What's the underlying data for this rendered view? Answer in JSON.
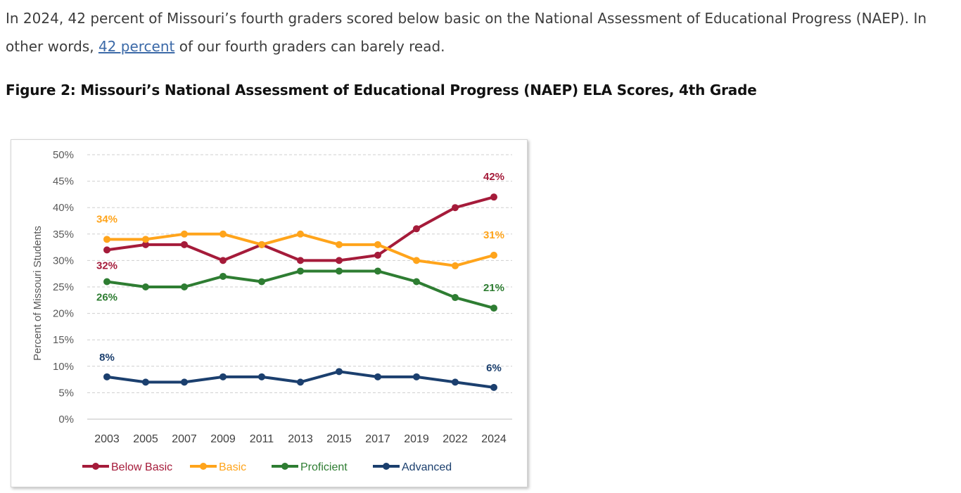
{
  "intro": {
    "text_before": "In 2024, 42 percent of Missouri’s fourth graders scored below basic on the National Assessment of Educational Progress (NAEP). In other words, ",
    "link_text": "42 percent",
    "text_after": " of our fourth graders can barely read."
  },
  "figure_title": "Figure 2: Missouri’s National Assessment of Educational Progress (NAEP) ELA Scores, 4th Grade",
  "chart_data": {
    "type": "line",
    "title": "",
    "xlabel": "",
    "ylabel": "Percent of Missouri Students",
    "x": [
      "2003",
      "2005",
      "2007",
      "2009",
      "2011",
      "2013",
      "2015",
      "2017",
      "2019",
      "2022",
      "2024"
    ],
    "ylim": [
      0,
      50
    ],
    "yticks": [
      "0%",
      "5%",
      "10%",
      "15%",
      "20%",
      "25%",
      "30%",
      "35%",
      "40%",
      "45%",
      "50%"
    ],
    "grid": true,
    "legend_position": "bottom",
    "series": [
      {
        "name": "Below Basic",
        "color": "#a51b3a",
        "values": [
          32,
          33,
          33,
          30,
          33,
          30,
          30,
          31,
          36,
          40,
          42
        ],
        "labels": {
          "first": "32%",
          "last": "42%"
        }
      },
      {
        "name": "Basic",
        "color": "#ffa41b",
        "values": [
          34,
          34,
          35,
          35,
          33,
          35,
          33,
          33,
          30,
          29,
          31
        ],
        "labels": {
          "first": "34%",
          "last": "31%"
        }
      },
      {
        "name": "Proficient",
        "color": "#2e7d32",
        "values": [
          26,
          25,
          25,
          27,
          26,
          28,
          28,
          28,
          26,
          23,
          21
        ],
        "labels": {
          "first": "26%",
          "last": "21%"
        }
      },
      {
        "name": "Advanced",
        "color": "#1b3f6e",
        "values": [
          8,
          7,
          7,
          8,
          8,
          7,
          9,
          8,
          8,
          7,
          6
        ],
        "labels": {
          "first": "8%",
          "last": "6%"
        }
      }
    ]
  }
}
